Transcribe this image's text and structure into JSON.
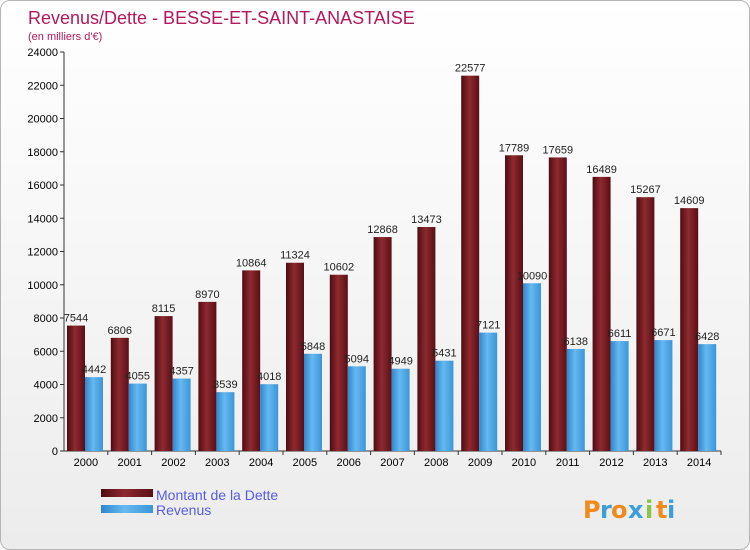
{
  "chart_data": {
    "type": "bar",
    "title": "Revenus/Dette - BESSE-ET-SAINT-ANASTAISE",
    "subtitle": "(en milliers d'€)",
    "categories": [
      "2000",
      "2001",
      "2002",
      "2003",
      "2004",
      "2005",
      "2006",
      "2007",
      "2008",
      "2009",
      "2010",
      "2011",
      "2012",
      "2013",
      "2014"
    ],
    "series": [
      {
        "name": "Montant de la Dette",
        "color": "#7a1b22",
        "values": [
          7544,
          6806,
          8115,
          8970,
          10864,
          11324,
          10602,
          12868,
          13473,
          22577,
          17789,
          17659,
          16489,
          15267,
          14609
        ]
      },
      {
        "name": "Revenus",
        "color": "#4aa8e8",
        "values": [
          4442,
          4055,
          4357,
          3539,
          4018,
          5848,
          5094,
          4949,
          5431,
          7121,
          10090,
          6138,
          6611,
          6671,
          6428
        ]
      }
    ],
    "ylim": [
      0,
      24000
    ],
    "yticks": [
      0,
      2000,
      4000,
      6000,
      8000,
      10000,
      12000,
      14000,
      16000,
      18000,
      20000,
      22000,
      24000
    ],
    "grid": false,
    "legend_position": "bottom-left"
  },
  "logo": {
    "letters": [
      "P",
      "r",
      "o",
      "x",
      "i",
      "t",
      "i"
    ],
    "colors": [
      "#f08a1c",
      "#3aa0dc",
      "#f08a1c",
      "#3aa0dc",
      "#8cc63e",
      "#f08a1c",
      "#3aa0dc"
    ]
  }
}
